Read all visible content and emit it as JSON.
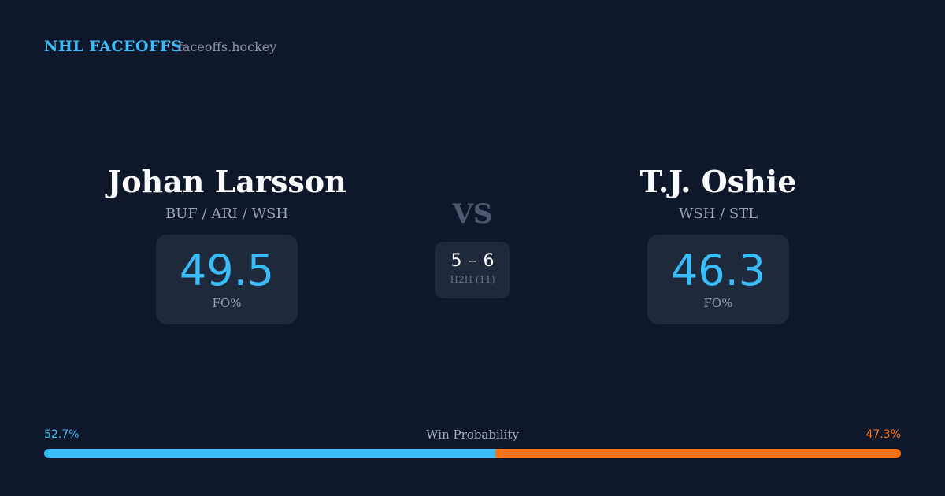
{
  "brand": {
    "name": "NHL FACEOFFS",
    "site": "faceoffs.hockey"
  },
  "players": [
    {
      "name": "Johan Larsson",
      "teams": "BUF / ARI / WSH",
      "fo_pct": 49.5,
      "fo_label": "FO%"
    },
    {
      "name": "T.J. Oshie",
      "teams": "WSH / STL",
      "fo_pct": 46.3,
      "fo_label": "FO%"
    }
  ],
  "vs": "VS",
  "h2h": {
    "wins": [
      5,
      6
    ],
    "separator": "–",
    "label": "H2H (11)"
  },
  "win_probability": {
    "label": "Win Probability",
    "values": [
      52.7,
      47.3
    ],
    "value_labels": [
      "52.7%",
      "47.3%"
    ],
    "colors": [
      "#38bdf8",
      "#f97316"
    ]
  }
}
